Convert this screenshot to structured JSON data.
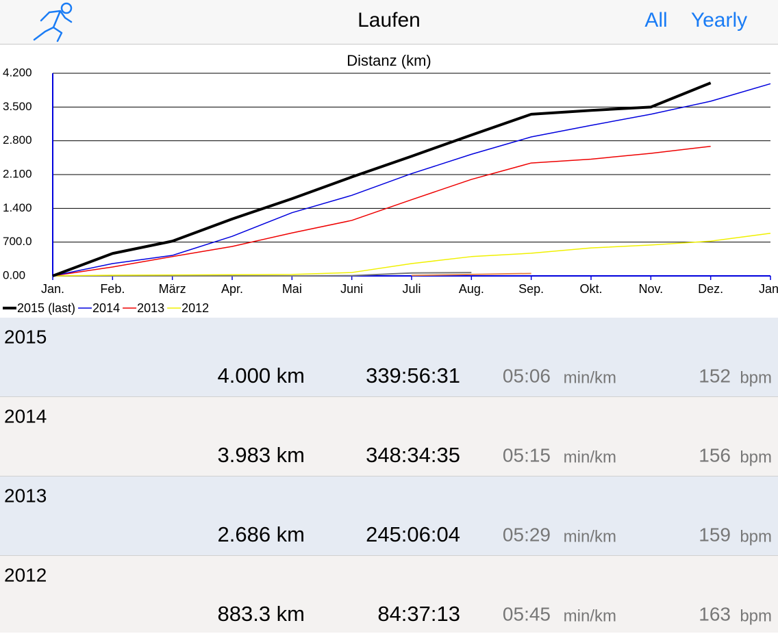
{
  "header": {
    "title": "Laufen",
    "buttons": [
      "All",
      "Yearly"
    ]
  },
  "chart_data": {
    "type": "line",
    "title": "Distanz (km)",
    "x": [
      0,
      1,
      2,
      3,
      4,
      5,
      6,
      7,
      8,
      9,
      10,
      11,
      12
    ],
    "xlim": [
      0,
      12
    ],
    "xticks": [
      {
        "value": 0,
        "label": "Jan."
      },
      {
        "value": 1,
        "label": "Feb."
      },
      {
        "value": 2,
        "label": "März"
      },
      {
        "value": 3,
        "label": "Apr."
      },
      {
        "value": 4,
        "label": "Mai"
      },
      {
        "value": 5,
        "label": "Juni"
      },
      {
        "value": 6,
        "label": "Juli"
      },
      {
        "value": 7,
        "label": "Aug."
      },
      {
        "value": 8,
        "label": "Sep."
      },
      {
        "value": 9,
        "label": "Okt."
      },
      {
        "value": 10,
        "label": "Nov."
      },
      {
        "value": 11,
        "label": "Dez."
      },
      {
        "value": 12,
        "label": "Jan."
      }
    ],
    "ylim": [
      0,
      4200
    ],
    "yticks": [
      {
        "value": 0,
        "label": "0.00"
      },
      {
        "value": 700,
        "label": "700.0"
      },
      {
        "value": 1400,
        "label": "1.400"
      },
      {
        "value": 2100,
        "label": "2.100"
      },
      {
        "value": 2800,
        "label": "2.800"
      },
      {
        "value": 3500,
        "label": "3.500"
      },
      {
        "value": 4200,
        "label": "4.200"
      }
    ],
    "grid": true,
    "series": [
      {
        "name": "2015 (last)",
        "color": "#000000",
        "width": 4,
        "values": [
          0,
          465,
          720,
          1180,
          1600,
          2050,
          2480,
          2920,
          3350,
          3430,
          3500,
          4000,
          null
        ]
      },
      {
        "name": "2014",
        "color": "#0000dd",
        "width": 1.5,
        "values": [
          0,
          255,
          425,
          820,
          1310,
          1670,
          2120,
          2520,
          2880,
          3120,
          3350,
          3620,
          3983
        ]
      },
      {
        "name": "2013",
        "color": "#ee0000",
        "width": 1.5,
        "values": [
          0,
          185,
          400,
          610,
          890,
          1150,
          1580,
          2000,
          2340,
          2420,
          2540,
          2686,
          null
        ]
      },
      {
        "name": "2012",
        "color": "#f0f000",
        "width": 1.5,
        "values": [
          0,
          15,
          20,
          25,
          30,
          70,
          255,
          400,
          470,
          580,
          640,
          720,
          883
        ]
      },
      {
        "color": "#777777",
        "width": 2,
        "values": [
          0,
          0,
          0,
          0,
          0,
          5,
          60,
          70,
          null,
          null,
          null,
          null,
          null
        ]
      },
      {
        "color": "#e8884a",
        "width": 2,
        "values": [
          null,
          null,
          null,
          null,
          null,
          null,
          10,
          30,
          50,
          null,
          null,
          null,
          null
        ]
      }
    ]
  },
  "table": {
    "pace_unit": "min/km",
    "hr_unit": "bpm",
    "rows": [
      {
        "year": "2015",
        "distance": "4.000 km",
        "time": "339:56:31",
        "pace": "05:06",
        "hr": "152"
      },
      {
        "year": "2014",
        "distance": "3.983 km",
        "time": "348:34:35",
        "pace": "05:15",
        "hr": "156"
      },
      {
        "year": "2013",
        "distance": "2.686 km",
        "time": "245:06:04",
        "pace": "05:29",
        "hr": "159"
      },
      {
        "year": "2012",
        "distance": "883.3 km",
        "time": "84:37:13",
        "pace": "05:45",
        "hr": "163"
      }
    ]
  }
}
